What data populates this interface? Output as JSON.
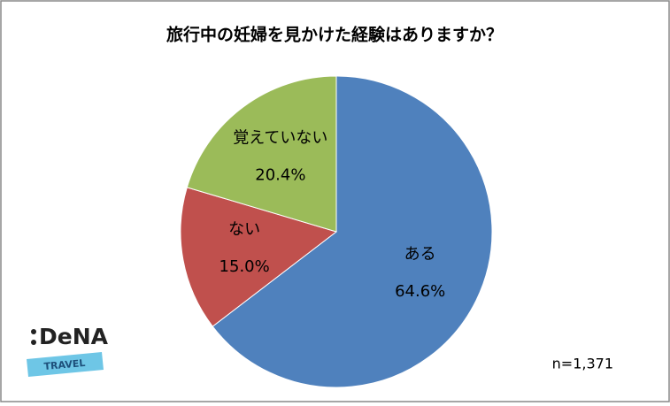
{
  "chart_data": {
    "type": "pie",
    "title": "旅行中の妊婦を見かけた経験はありますか？",
    "categories": [
      "ある",
      "ない",
      "覚えていない"
    ],
    "values": [
      64.6,
      15.0,
      20.4
    ],
    "value_labels": [
      "64.6%",
      "15.0%",
      "20.4%"
    ],
    "colors": [
      "#4f81bd",
      "#c0504d",
      "#9bbb59"
    ],
    "annotation": "n=1,371"
  },
  "logo": {
    "brand": "DeNA",
    "sub": "TRAVEL"
  }
}
